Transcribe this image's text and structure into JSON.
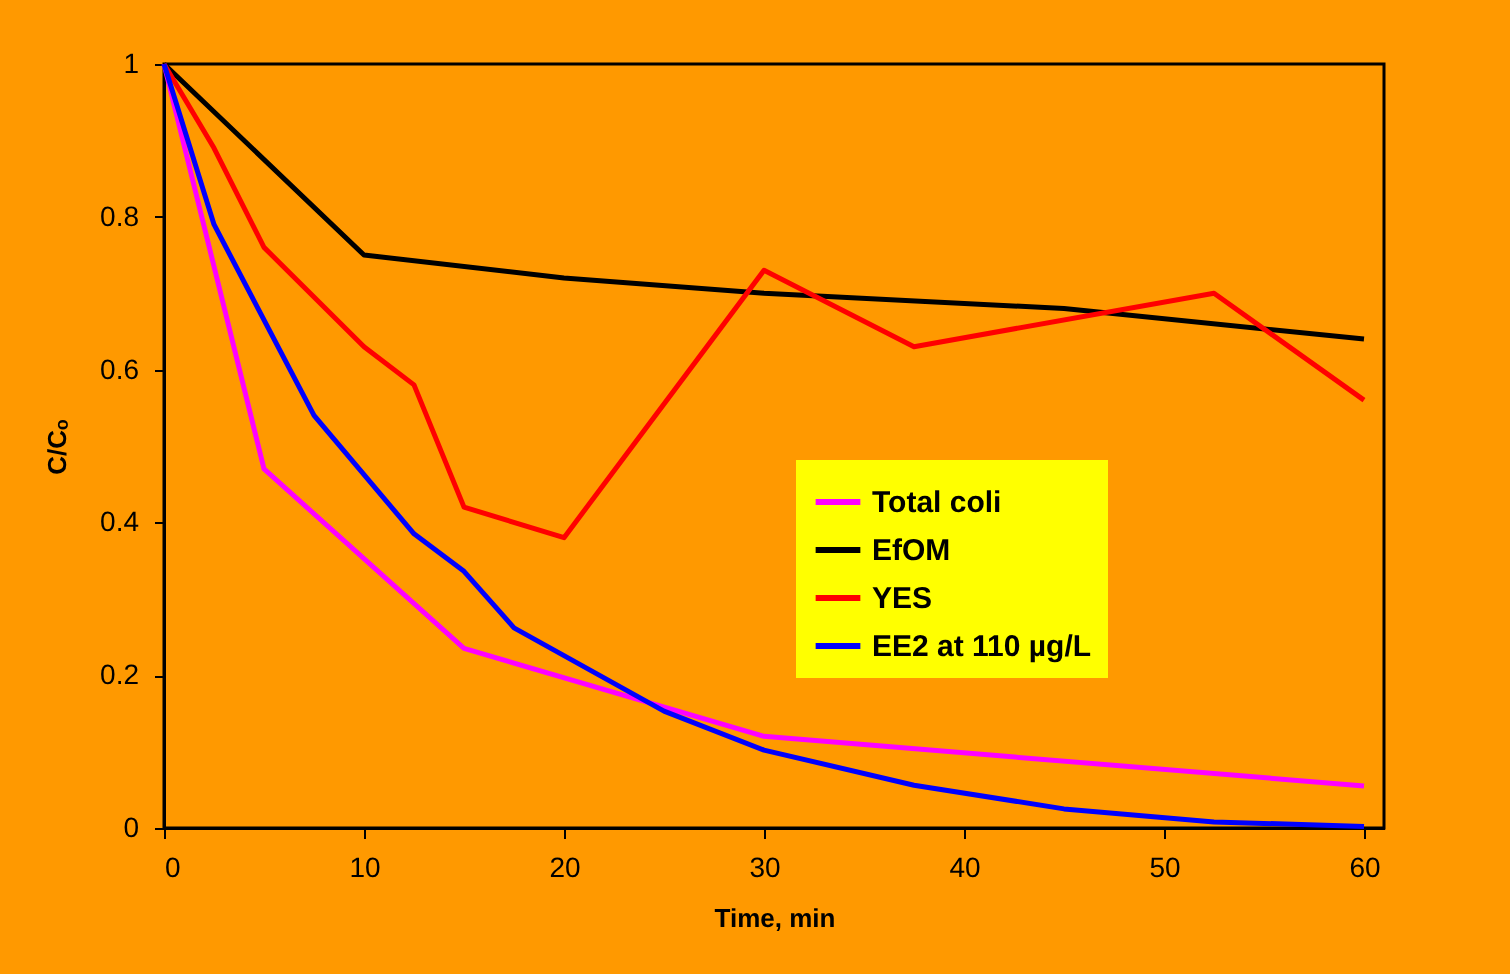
{
  "chart_data": {
    "type": "line",
    "xlabel": "Time, min",
    "ylabel": "C/Cₒ",
    "xlim": [
      0,
      61
    ],
    "xticks": [
      0,
      10,
      20,
      30,
      40,
      50,
      60
    ],
    "ylim": [
      0,
      1
    ],
    "yticks": [
      0,
      0.2,
      0.4,
      0.6,
      0.8,
      1
    ],
    "grid": false,
    "legend": "right",
    "marker": "none",
    "line_style": "solid",
    "series": [
      {
        "name": "Total coli",
        "color": "#ff00ff",
        "x": [
          0,
          5,
          15,
          30,
          60
        ],
        "values": [
          1,
          0.47,
          0.235,
          0.12,
          0.055
        ]
      },
      {
        "name": "EfOM",
        "color": "#000000",
        "x": [
          0,
          10,
          20,
          30,
          45,
          60
        ],
        "values": [
          1,
          0.75,
          0.72,
          0.7,
          0.68,
          0.64
        ]
      },
      {
        "name": "YES",
        "color": "#ff0000",
        "x": [
          0,
          2.5,
          5,
          10,
          12.5,
          15,
          20,
          30,
          37.5,
          52.5,
          60
        ],
        "values": [
          1,
          0.89,
          0.76,
          0.63,
          0.58,
          0.42,
          0.38,
          0.73,
          0.63,
          0.7,
          0.56
        ]
      },
      {
        "name": "EE2 at 110 µg/L",
        "color": "#0000ff",
        "x": [
          0,
          2.5,
          7.5,
          12.5,
          15,
          17.5,
          25,
          30,
          37.5,
          45,
          52.5,
          60
        ],
        "values": [
          1,
          0.79,
          0.54,
          0.385,
          0.336,
          0.262,
          0.153,
          0.102,
          0.056,
          0.025,
          0.008,
          0.002
        ]
      }
    ]
  }
}
